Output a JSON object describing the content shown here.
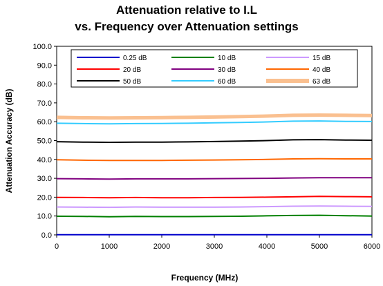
{
  "chart_data": {
    "type": "line",
    "title_lines": [
      "Attenuation relative to I.L",
      "vs. Frequency over Attenuation settings"
    ],
    "xlabel": "Frequency (MHz)",
    "ylabel": "Attenuation Accuracy (dB)",
    "xlim": [
      0,
      6000
    ],
    "ylim": [
      0,
      100
    ],
    "x_ticks": [
      0,
      1000,
      2000,
      3000,
      4000,
      5000,
      6000
    ],
    "x_tick_labels": [
      "0",
      "1000",
      "2000",
      "3000",
      "4000",
      "5000",
      "6000"
    ],
    "y_ticks": [
      0,
      10,
      20,
      30,
      40,
      50,
      60,
      70,
      80,
      90,
      100
    ],
    "y_tick_labels": [
      "0.0",
      "10.0",
      "20.0",
      "30.0",
      "40.0",
      "50.0",
      "60.0",
      "70.0",
      "80.0",
      "90.0",
      "100.0"
    ],
    "grid": false,
    "legend_placement": "top-inside",
    "x": [
      0,
      500,
      1000,
      1500,
      2000,
      2500,
      3000,
      3500,
      4000,
      4500,
      5000,
      5500,
      6000
    ],
    "series": [
      {
        "name": "0.25 dB",
        "color": "#0000cc",
        "values": [
          0.1,
          0.1,
          0.1,
          0.1,
          0.1,
          0.1,
          0.1,
          0.1,
          0.1,
          0.1,
          0.1,
          0.1,
          0.1
        ]
      },
      {
        "name": "10 dB",
        "color": "#008000",
        "values": [
          9.9,
          9.8,
          9.6,
          9.8,
          9.7,
          9.7,
          9.8,
          9.9,
          10.1,
          10.3,
          10.4,
          10.2,
          10.0
        ]
      },
      {
        "name": "15 dB",
        "color": "#cc99ff",
        "values": [
          14.8,
          14.7,
          14.6,
          14.8,
          14.7,
          14.7,
          14.7,
          14.8,
          15.0,
          15.2,
          15.3,
          15.2,
          15.1
        ]
      },
      {
        "name": "20 dB",
        "color": "#ff0000",
        "values": [
          19.9,
          19.8,
          19.7,
          19.8,
          19.7,
          19.7,
          19.8,
          19.9,
          20.0,
          20.2,
          20.4,
          20.3,
          20.2
        ]
      },
      {
        "name": "30 dB",
        "color": "#800080",
        "values": [
          29.8,
          29.7,
          29.6,
          29.7,
          29.7,
          29.7,
          29.8,
          29.9,
          30.0,
          30.2,
          30.3,
          30.3,
          30.3
        ]
      },
      {
        "name": "40 dB",
        "color": "#ff6600",
        "values": [
          39.8,
          39.6,
          39.5,
          39.5,
          39.5,
          39.6,
          39.7,
          39.8,
          40.0,
          40.3,
          40.4,
          40.3,
          40.3
        ]
      },
      {
        "name": "50 dB",
        "color": "#000000",
        "values": [
          49.4,
          49.2,
          49.1,
          49.2,
          49.2,
          49.3,
          49.5,
          49.7,
          50.0,
          50.4,
          50.5,
          50.3,
          50.2
        ]
      },
      {
        "name": "60 dB",
        "color": "#33ccff",
        "values": [
          59.2,
          59.0,
          58.9,
          59.0,
          59.1,
          59.2,
          59.4,
          59.6,
          59.9,
          60.3,
          60.4,
          60.2,
          60.1
        ]
      },
      {
        "name": "63 dB",
        "color": "#fac090",
        "values": [
          62.3,
          62.1,
          62.0,
          62.1,
          62.2,
          62.3,
          62.5,
          62.7,
          63.0,
          63.4,
          63.5,
          63.4,
          63.3
        ]
      }
    ]
  }
}
